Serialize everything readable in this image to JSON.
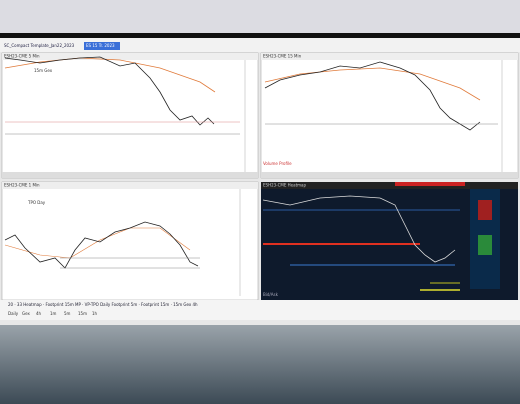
{
  "window": {
    "title": "SC_Compact Template_Jan22_2023",
    "badge": "ES 15 Tr. 2023"
  },
  "panes": [
    {
      "title": "ESH23-CME 5 Min",
      "label": "15m Gex"
    },
    {
      "title": "ESH23-CME 15 Min",
      "label": "Volume Profile"
    },
    {
      "title": "ESH23-CME 1 Min",
      "label": "TPO Day"
    },
    {
      "title": "ESH23-CME Heatmap",
      "label": "Bid/Ask"
    }
  ],
  "tabs": {
    "main": "20 · 33 Heatmap · Footprint 15m MP · VP-TPO Daily Footprint 5m · Footprint 15m · 15m Gex 4h",
    "sub": [
      "Daily",
      "Gex",
      "4h",
      "1m",
      "5m",
      "15m",
      "1h"
    ]
  }
}
